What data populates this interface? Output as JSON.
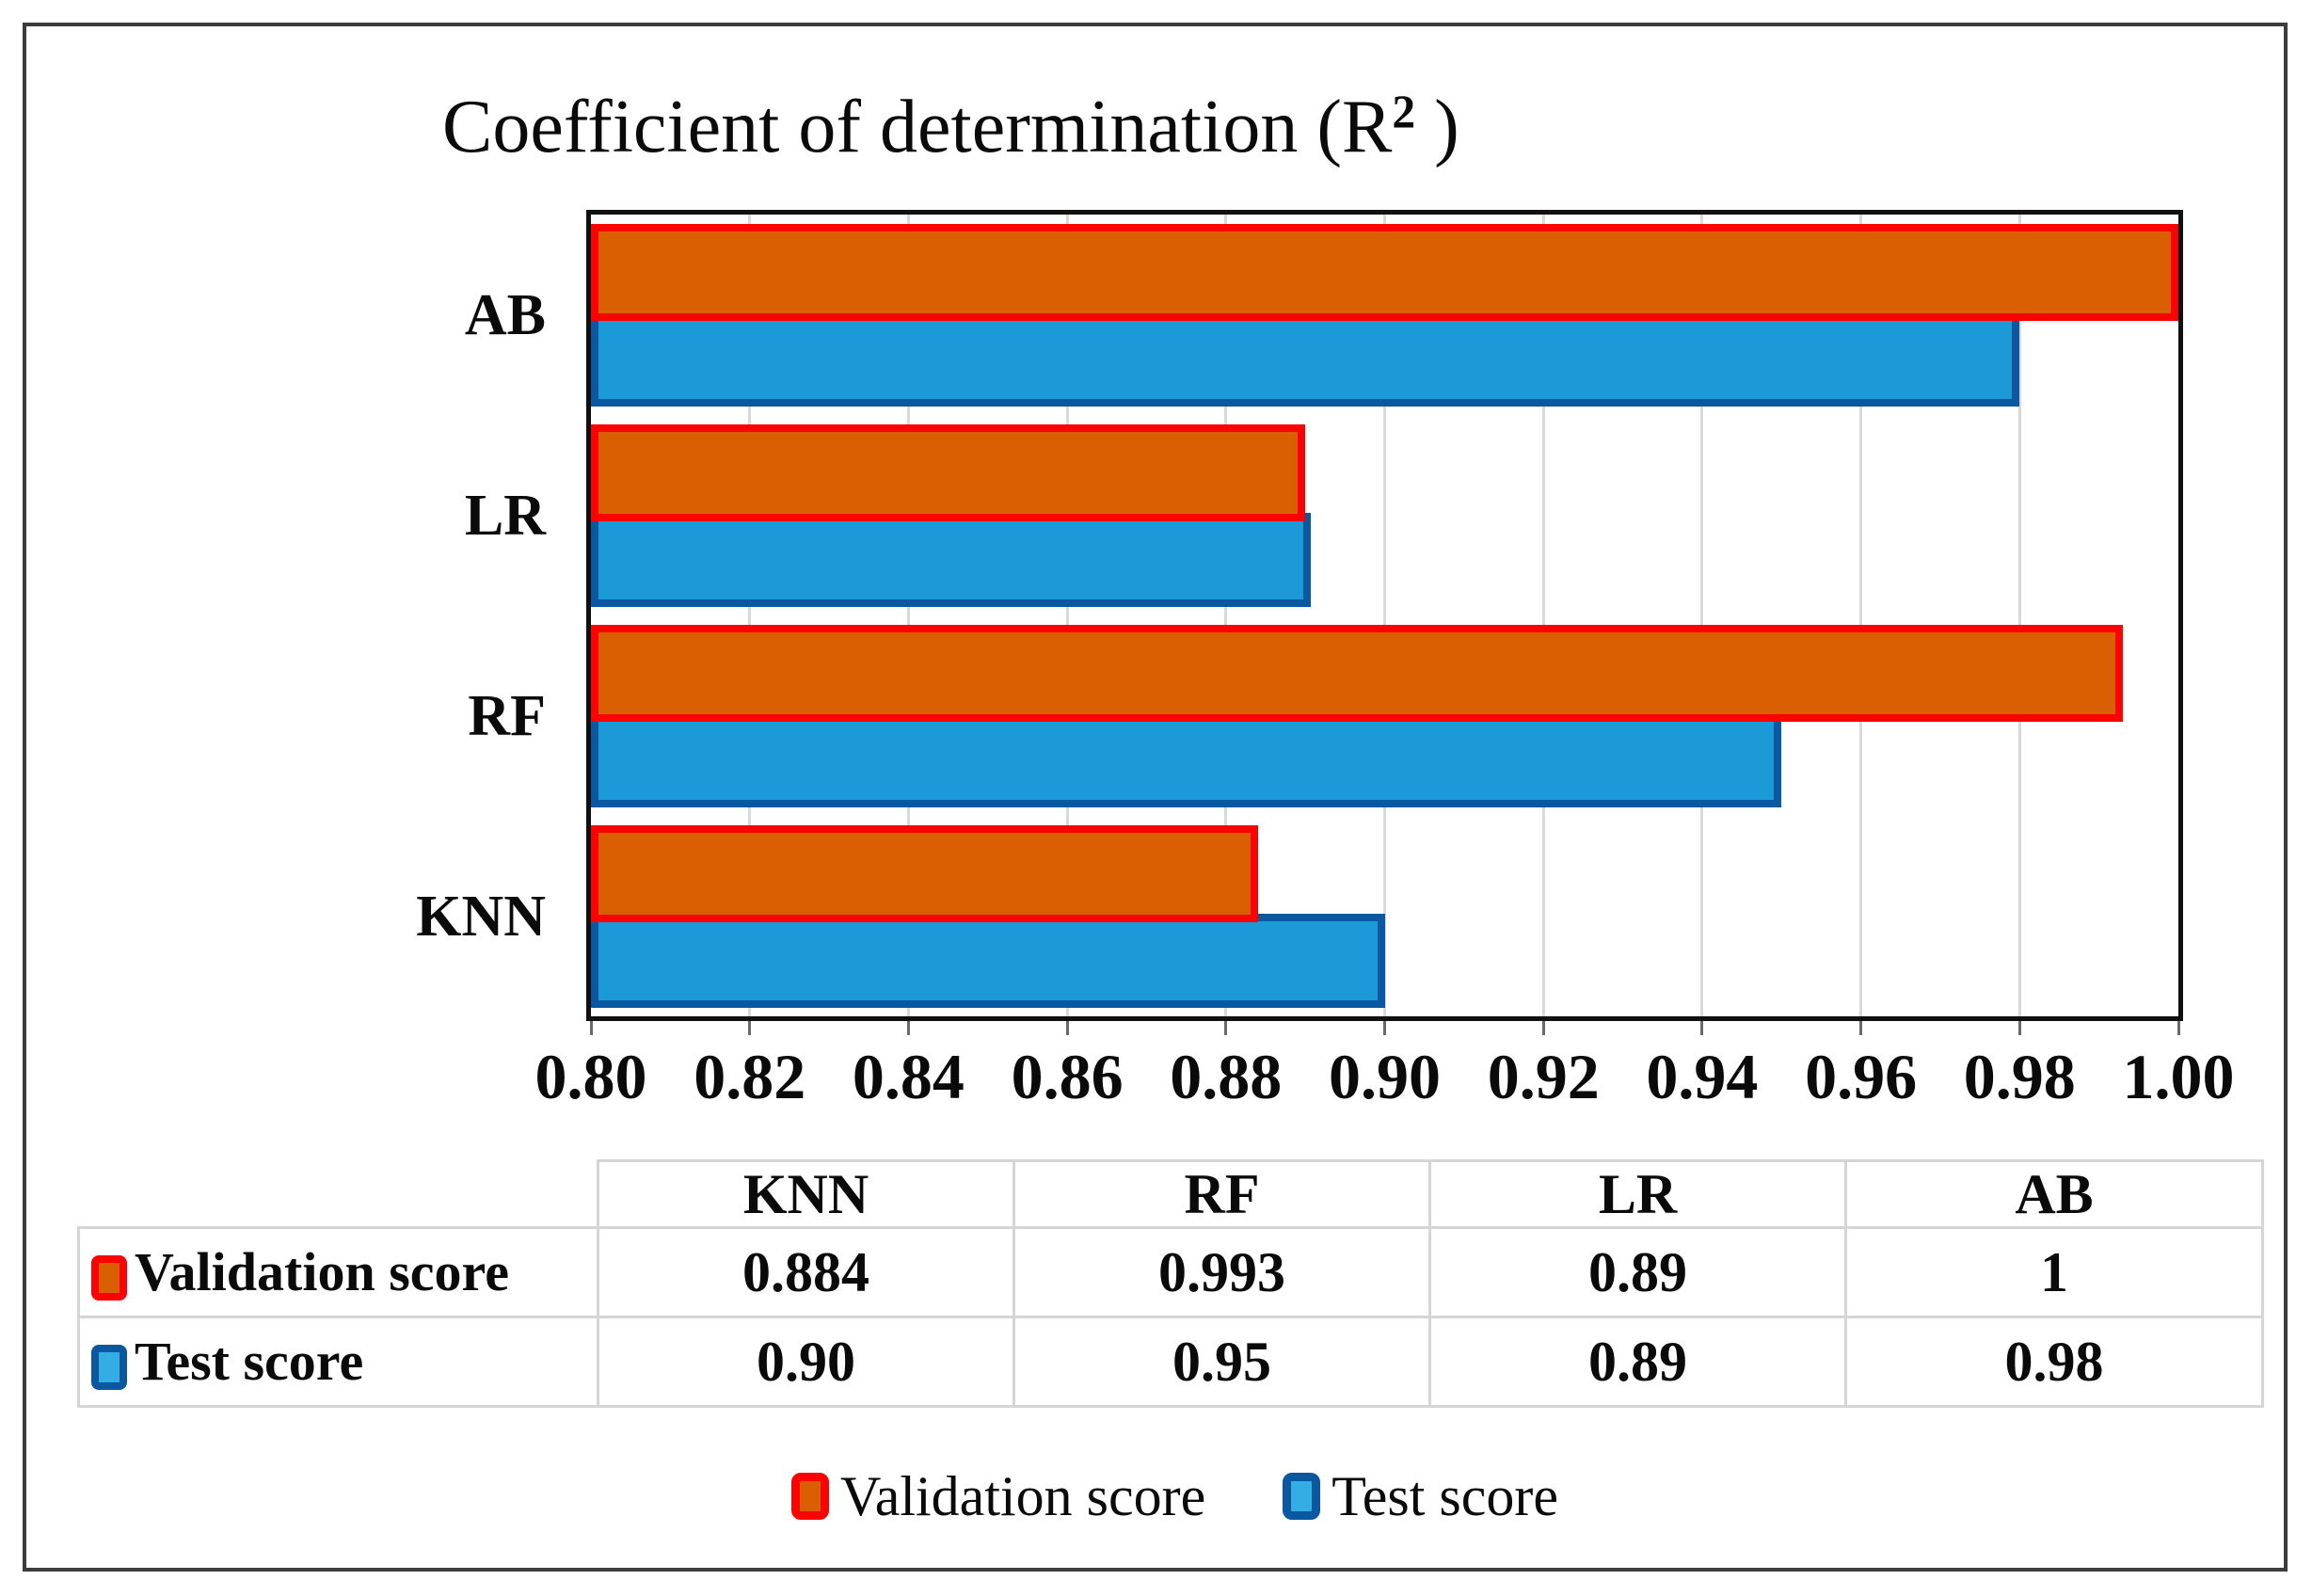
{
  "title": {
    "prefix": "Coefficient of determination (R",
    "sup": "2",
    "suffix": " )"
  },
  "chart_data": {
    "type": "bar",
    "orientation": "horizontal",
    "title": "Coefficient of determination (R2)",
    "categories": [
      "KNN",
      "RF",
      "LR",
      "AB"
    ],
    "display_order_top_to_bottom": [
      "AB",
      "LR",
      "RF",
      "KNN"
    ],
    "series": [
      {
        "name": "Validation score",
        "values": [
          0.884,
          0.993,
          0.89,
          1
        ],
        "fill": "#d95f02",
        "border": "#fb0303"
      },
      {
        "name": "Test score",
        "values": [
          0.9,
          0.95,
          0.89,
          0.98
        ],
        "fill": "#1b9ad7",
        "border": "#0b57a0"
      }
    ],
    "xlim": [
      0.8,
      1.0
    ],
    "xtick_labels": [
      "0.80",
      "0.82",
      "0.84",
      "0.86",
      "0.88",
      "0.90",
      "0.92",
      "0.94",
      "0.96",
      "0.98",
      "1.00"
    ],
    "grid": true,
    "gridline_color": "#d9d9d9",
    "legend_position": "bottom"
  },
  "table": {
    "corner_label": "",
    "columns": [
      "KNN",
      "RF",
      "LR",
      "AB"
    ],
    "rows": [
      {
        "label": "Validation score",
        "swatch": {
          "fill": "#d95f02",
          "border": "#fb0303"
        },
        "values": [
          "0.884",
          "0.993",
          "0.89",
          "1"
        ]
      },
      {
        "label": "Test score",
        "swatch": {
          "fill": "#33ade3",
          "border": "#0b57a0"
        },
        "values": [
          "0.90",
          "0.95",
          "0.89",
          "0.98"
        ]
      }
    ]
  },
  "legend": {
    "items": [
      {
        "label": "Validation score",
        "fill": "#d95f02",
        "border": "#fb0303"
      },
      {
        "label": "Test score",
        "fill": "#33ade3",
        "border": "#0b57a0"
      }
    ]
  },
  "colors": {
    "validation_fill": "#d95f02",
    "validation_border": "#fb0303",
    "test_fill": "#1b9ad7",
    "test_border": "#0b57a0",
    "gridline": "#d9d9d9",
    "table_border": "#d5d5d5",
    "frame_border": "#3c3c3c",
    "text": "#0a0a0a"
  }
}
